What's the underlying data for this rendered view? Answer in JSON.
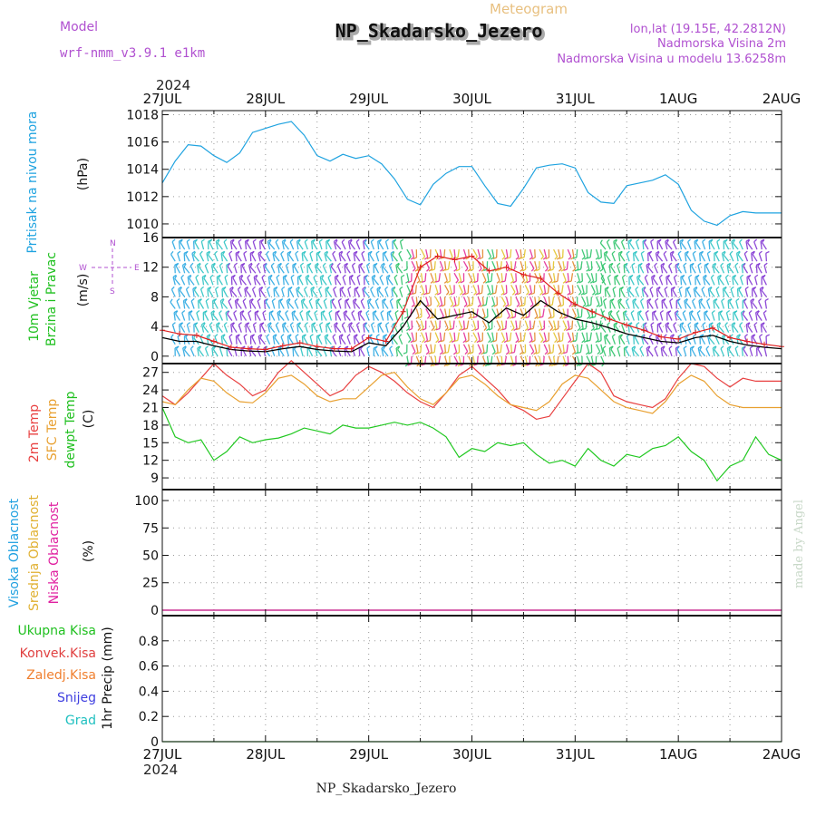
{
  "header": {
    "model_label": "Model",
    "model_name": "wrf-nmm_v3.9.1 e1km",
    "product": "Meteogram",
    "station": "NP_Skadarsko_Jezero",
    "lonlat": "lon,lat (19.15E, 42.2812N)",
    "elevation": "Nadmorska Visina 2m",
    "model_elevation": "Nadmorska Visina u modelu 13.6258m",
    "footer_station": "NP_Skadarsko_Jezero",
    "watermark": "made by Angel"
  },
  "time_axis": {
    "year": "2024",
    "labels": [
      "27JUL",
      "28JUL",
      "29JUL",
      "30JUL",
      "31JUL",
      "1AUG",
      "2AUG"
    ]
  },
  "panels": {
    "pressure": {
      "ylabel_left": "Pritisak na nivou mora",
      "units": "(hPa)"
    },
    "wind": {
      "ylabel_1": "10m Vjetar",
      "ylabel_2": "Brzina i Pravac",
      "units": "(m/s)",
      "compass": [
        "N",
        "E",
        "W",
        "S"
      ]
    },
    "temp": {
      "ylabel_1": "2m Temp",
      "ylabel_2": "SFC Temp",
      "ylabel_3": "dewpt Temp",
      "units": "(C)"
    },
    "cloud": {
      "ylabel_1": "Visoka Oblacnost",
      "ylabel_2": "Srednja Oblacnost",
      "ylabel_3": "Niska Oblacnost",
      "units": "(%)"
    },
    "precip": {
      "legend": [
        "Ukupna Kisa",
        "Konvek.Kisa",
        "Zaledj.Kisa",
        "Snijeg",
        "Grad"
      ],
      "units": "1hr Precip (mm)"
    }
  },
  "colors": {
    "pressure": "#1fa3e0",
    "wind_speed": "#000000",
    "gust": "#e02020",
    "t2m": "#e84040",
    "sfc": "#e8a030",
    "dewpt": "#20c820",
    "high_cloud": "#20a0e0",
    "mid_cloud": "#e0b030",
    "low_cloud": "#e020a0",
    "rain": "#20c020",
    "conv": "#e04040",
    "frz": "#f08030",
    "snow": "#4040e0",
    "hail": "#20c0c0",
    "title_purple": "#b050d0",
    "title_orange": "#e8c080"
  },
  "chart_data": [
    {
      "type": "line",
      "name": "pressure",
      "x_range": [
        0,
        144
      ],
      "ylim": [
        1009,
        1018.3
      ],
      "yticks": [
        1010,
        1012,
        1014,
        1016,
        1018
      ],
      "series": [
        {
          "color": "#1fa3e0",
          "x": [
            0,
            3,
            6,
            9,
            12,
            15,
            18,
            21,
            24,
            27,
            30,
            33,
            36,
            39,
            42,
            45,
            48,
            51,
            54,
            57,
            60,
            63,
            66,
            69,
            72,
            75,
            78,
            81,
            84,
            87,
            90,
            93,
            96,
            99,
            102,
            105,
            108,
            111,
            114,
            117,
            120,
            123,
            126,
            129,
            132,
            135,
            138,
            141,
            144
          ],
          "values": [
            1013.0,
            1014.6,
            1015.8,
            1015.7,
            1015.0,
            1014.5,
            1015.2,
            1016.7,
            1017.0,
            1017.3,
            1017.5,
            1016.5,
            1015.0,
            1014.6,
            1015.1,
            1014.8,
            1015.0,
            1014.4,
            1013.3,
            1011.8,
            1011.4,
            1012.9,
            1013.7,
            1014.2,
            1014.2,
            1012.8,
            1011.5,
            1011.3,
            1012.6,
            1014.1,
            1014.3,
            1014.4,
            1014.1,
            1012.3,
            1011.6,
            1011.5,
            1012.8,
            1013.0,
            1013.2,
            1013.6,
            1012.9,
            1011.0,
            1010.2,
            1009.9,
            1010.6,
            1010.9,
            1010.8,
            1010.8,
            1010.8
          ]
        }
      ]
    },
    {
      "type": "line",
      "name": "wind",
      "x_range": [
        0,
        144
      ],
      "ylim": [
        -1,
        16
      ],
      "yticks": [
        0,
        4,
        8,
        12,
        16
      ],
      "series": [
        {
          "name": "speed",
          "color": "#000000",
          "x": [
            0,
            4,
            8,
            12,
            16,
            20,
            24,
            28,
            32,
            36,
            40,
            44,
            48,
            52,
            56,
            60,
            64,
            68,
            72,
            76,
            80,
            84,
            88,
            92,
            96,
            100,
            104,
            108,
            112,
            116,
            120,
            124,
            128,
            132,
            136,
            140,
            144
          ],
          "values": [
            2.5,
            2.0,
            2.0,
            1.4,
            0.9,
            0.7,
            0.6,
            1.0,
            1.3,
            0.9,
            0.7,
            0.6,
            1.8,
            1.4,
            4.0,
            7.5,
            5.0,
            5.5,
            6.0,
            4.5,
            6.5,
            5.5,
            7.5,
            6.0,
            5.0,
            4.5,
            3.8,
            3.0,
            2.5,
            2.0,
            1.8,
            2.5,
            2.8,
            2.0,
            1.5,
            1.2,
            1.0
          ]
        },
        {
          "name": "gust",
          "color": "#e02020",
          "x": [
            0,
            4,
            8,
            12,
            16,
            20,
            24,
            28,
            32,
            36,
            40,
            44,
            48,
            52,
            56,
            60,
            64,
            68,
            72,
            76,
            80,
            84,
            88,
            92,
            96,
            100,
            104,
            108,
            112,
            116,
            120,
            124,
            128,
            132,
            136,
            140,
            144
          ],
          "values": [
            3.5,
            3.0,
            2.8,
            2.0,
            1.2,
            1.0,
            0.9,
            1.4,
            1.8,
            1.3,
            1.0,
            1.0,
            2.5,
            2.0,
            6.0,
            12.0,
            13.5,
            13.0,
            13.5,
            11.5,
            12.0,
            11.0,
            10.5,
            8.5,
            7.0,
            6.0,
            5.0,
            4.2,
            3.5,
            2.6,
            2.3,
            3.2,
            3.8,
            2.5,
            2.0,
            1.6,
            1.3
          ]
        }
      ]
    },
    {
      "type": "line",
      "name": "temperature",
      "x_range": [
        0,
        144
      ],
      "ylim": [
        7,
        28.5
      ],
      "yticks": [
        9,
        12,
        15,
        18,
        21,
        24,
        27
      ],
      "series": [
        {
          "name": "2m",
          "color": "#e84040",
          "x": [
            0,
            3,
            6,
            9,
            12,
            15,
            18,
            21,
            24,
            27,
            30,
            33,
            36,
            39,
            42,
            45,
            48,
            51,
            54,
            57,
            60,
            63,
            66,
            69,
            72,
            75,
            78,
            81,
            84,
            87,
            90,
            93,
            96,
            99,
            102,
            105,
            108,
            111,
            114,
            117,
            120,
            123,
            126,
            129,
            132,
            135,
            138,
            141,
            144
          ],
          "values": [
            23.0,
            21.5,
            23.5,
            26.0,
            28.5,
            26.5,
            25.0,
            23.0,
            24.0,
            27.0,
            29.0,
            27.0,
            25.0,
            23.0,
            24.0,
            26.5,
            28.0,
            27.0,
            25.5,
            23.5,
            22.0,
            21.0,
            23.5,
            26.5,
            28.0,
            26.0,
            24.0,
            21.5,
            20.5,
            19.0,
            19.5,
            22.5,
            25.5,
            28.5,
            27.0,
            23.0,
            22.0,
            21.5,
            21.0,
            22.5,
            26.0,
            28.5,
            28.0,
            26.0,
            24.5,
            26.0,
            25.5,
            25.5,
            25.5
          ]
        },
        {
          "name": "SFC",
          "color": "#e8a030",
          "x": [
            0,
            3,
            6,
            9,
            12,
            15,
            18,
            21,
            24,
            27,
            30,
            33,
            36,
            39,
            42,
            45,
            48,
            51,
            54,
            57,
            60,
            63,
            66,
            69,
            72,
            75,
            78,
            81,
            84,
            87,
            90,
            93,
            96,
            99,
            102,
            105,
            108,
            111,
            114,
            117,
            120,
            123,
            126,
            129,
            132,
            135,
            138,
            141,
            144
          ],
          "values": [
            22.0,
            21.5,
            24.0,
            26.0,
            25.5,
            23.5,
            22.0,
            21.8,
            23.5,
            26.0,
            26.5,
            25.0,
            23.0,
            22.0,
            22.5,
            22.5,
            24.5,
            26.5,
            27.0,
            24.5,
            22.5,
            21.5,
            23.5,
            26.0,
            26.5,
            25.0,
            23.0,
            21.5,
            21.0,
            20.5,
            22.0,
            25.0,
            26.5,
            26.0,
            24.0,
            22.0,
            21.0,
            20.5,
            20.0,
            22.0,
            25.0,
            26.5,
            25.5,
            23.0,
            21.5,
            21.0,
            21.0,
            21.0,
            21.0
          ]
        },
        {
          "name": "dewpt",
          "color": "#20c820",
          "x": [
            0,
            3,
            6,
            9,
            12,
            15,
            18,
            21,
            24,
            27,
            30,
            33,
            36,
            39,
            42,
            45,
            48,
            51,
            54,
            57,
            60,
            63,
            66,
            69,
            72,
            75,
            78,
            81,
            84,
            87,
            90,
            93,
            96,
            99,
            102,
            105,
            108,
            111,
            114,
            117,
            120,
            123,
            126,
            129,
            132,
            135,
            138,
            141,
            144
          ],
          "values": [
            21.0,
            16.0,
            15.0,
            15.5,
            12.0,
            13.5,
            16.0,
            15.0,
            15.5,
            15.8,
            16.5,
            17.5,
            17.0,
            16.5,
            18.0,
            17.5,
            17.5,
            18.0,
            18.5,
            18.0,
            18.5,
            17.5,
            16.0,
            12.5,
            14.0,
            13.5,
            15.0,
            14.5,
            15.0,
            13.0,
            11.5,
            12.0,
            11.0,
            14.0,
            12.0,
            11.0,
            13.0,
            12.5,
            14.0,
            14.5,
            16.0,
            13.5,
            12.0,
            8.5,
            11.0,
            12.0,
            16.0,
            13.0,
            12.0
          ]
        }
      ]
    },
    {
      "type": "line",
      "name": "cloud",
      "x_range": [
        0,
        144
      ],
      "ylim": [
        -5,
        110
      ],
      "yticks": [
        0,
        25,
        50,
        75,
        100
      ],
      "series": [
        {
          "name": "high",
          "color": "#20a0e0",
          "x": [
            0,
            144
          ],
          "values": [
            0,
            0
          ]
        },
        {
          "name": "mid",
          "color": "#e0b030",
          "x": [
            0,
            144
          ],
          "values": [
            0,
            0
          ]
        },
        {
          "name": "low",
          "color": "#e020a0",
          "x": [
            0,
            144
          ],
          "values": [
            0,
            0
          ]
        }
      ]
    },
    {
      "type": "line",
      "name": "precip",
      "x_range": [
        0,
        144
      ],
      "ylim": [
        0,
        1.0
      ],
      "yticks": [
        0,
        0.2,
        0.4,
        0.6,
        0.8
      ],
      "series": [
        {
          "name": "rain",
          "color": "#20c020",
          "x": [
            0,
            144
          ],
          "values": [
            0,
            0
          ]
        }
      ]
    }
  ]
}
